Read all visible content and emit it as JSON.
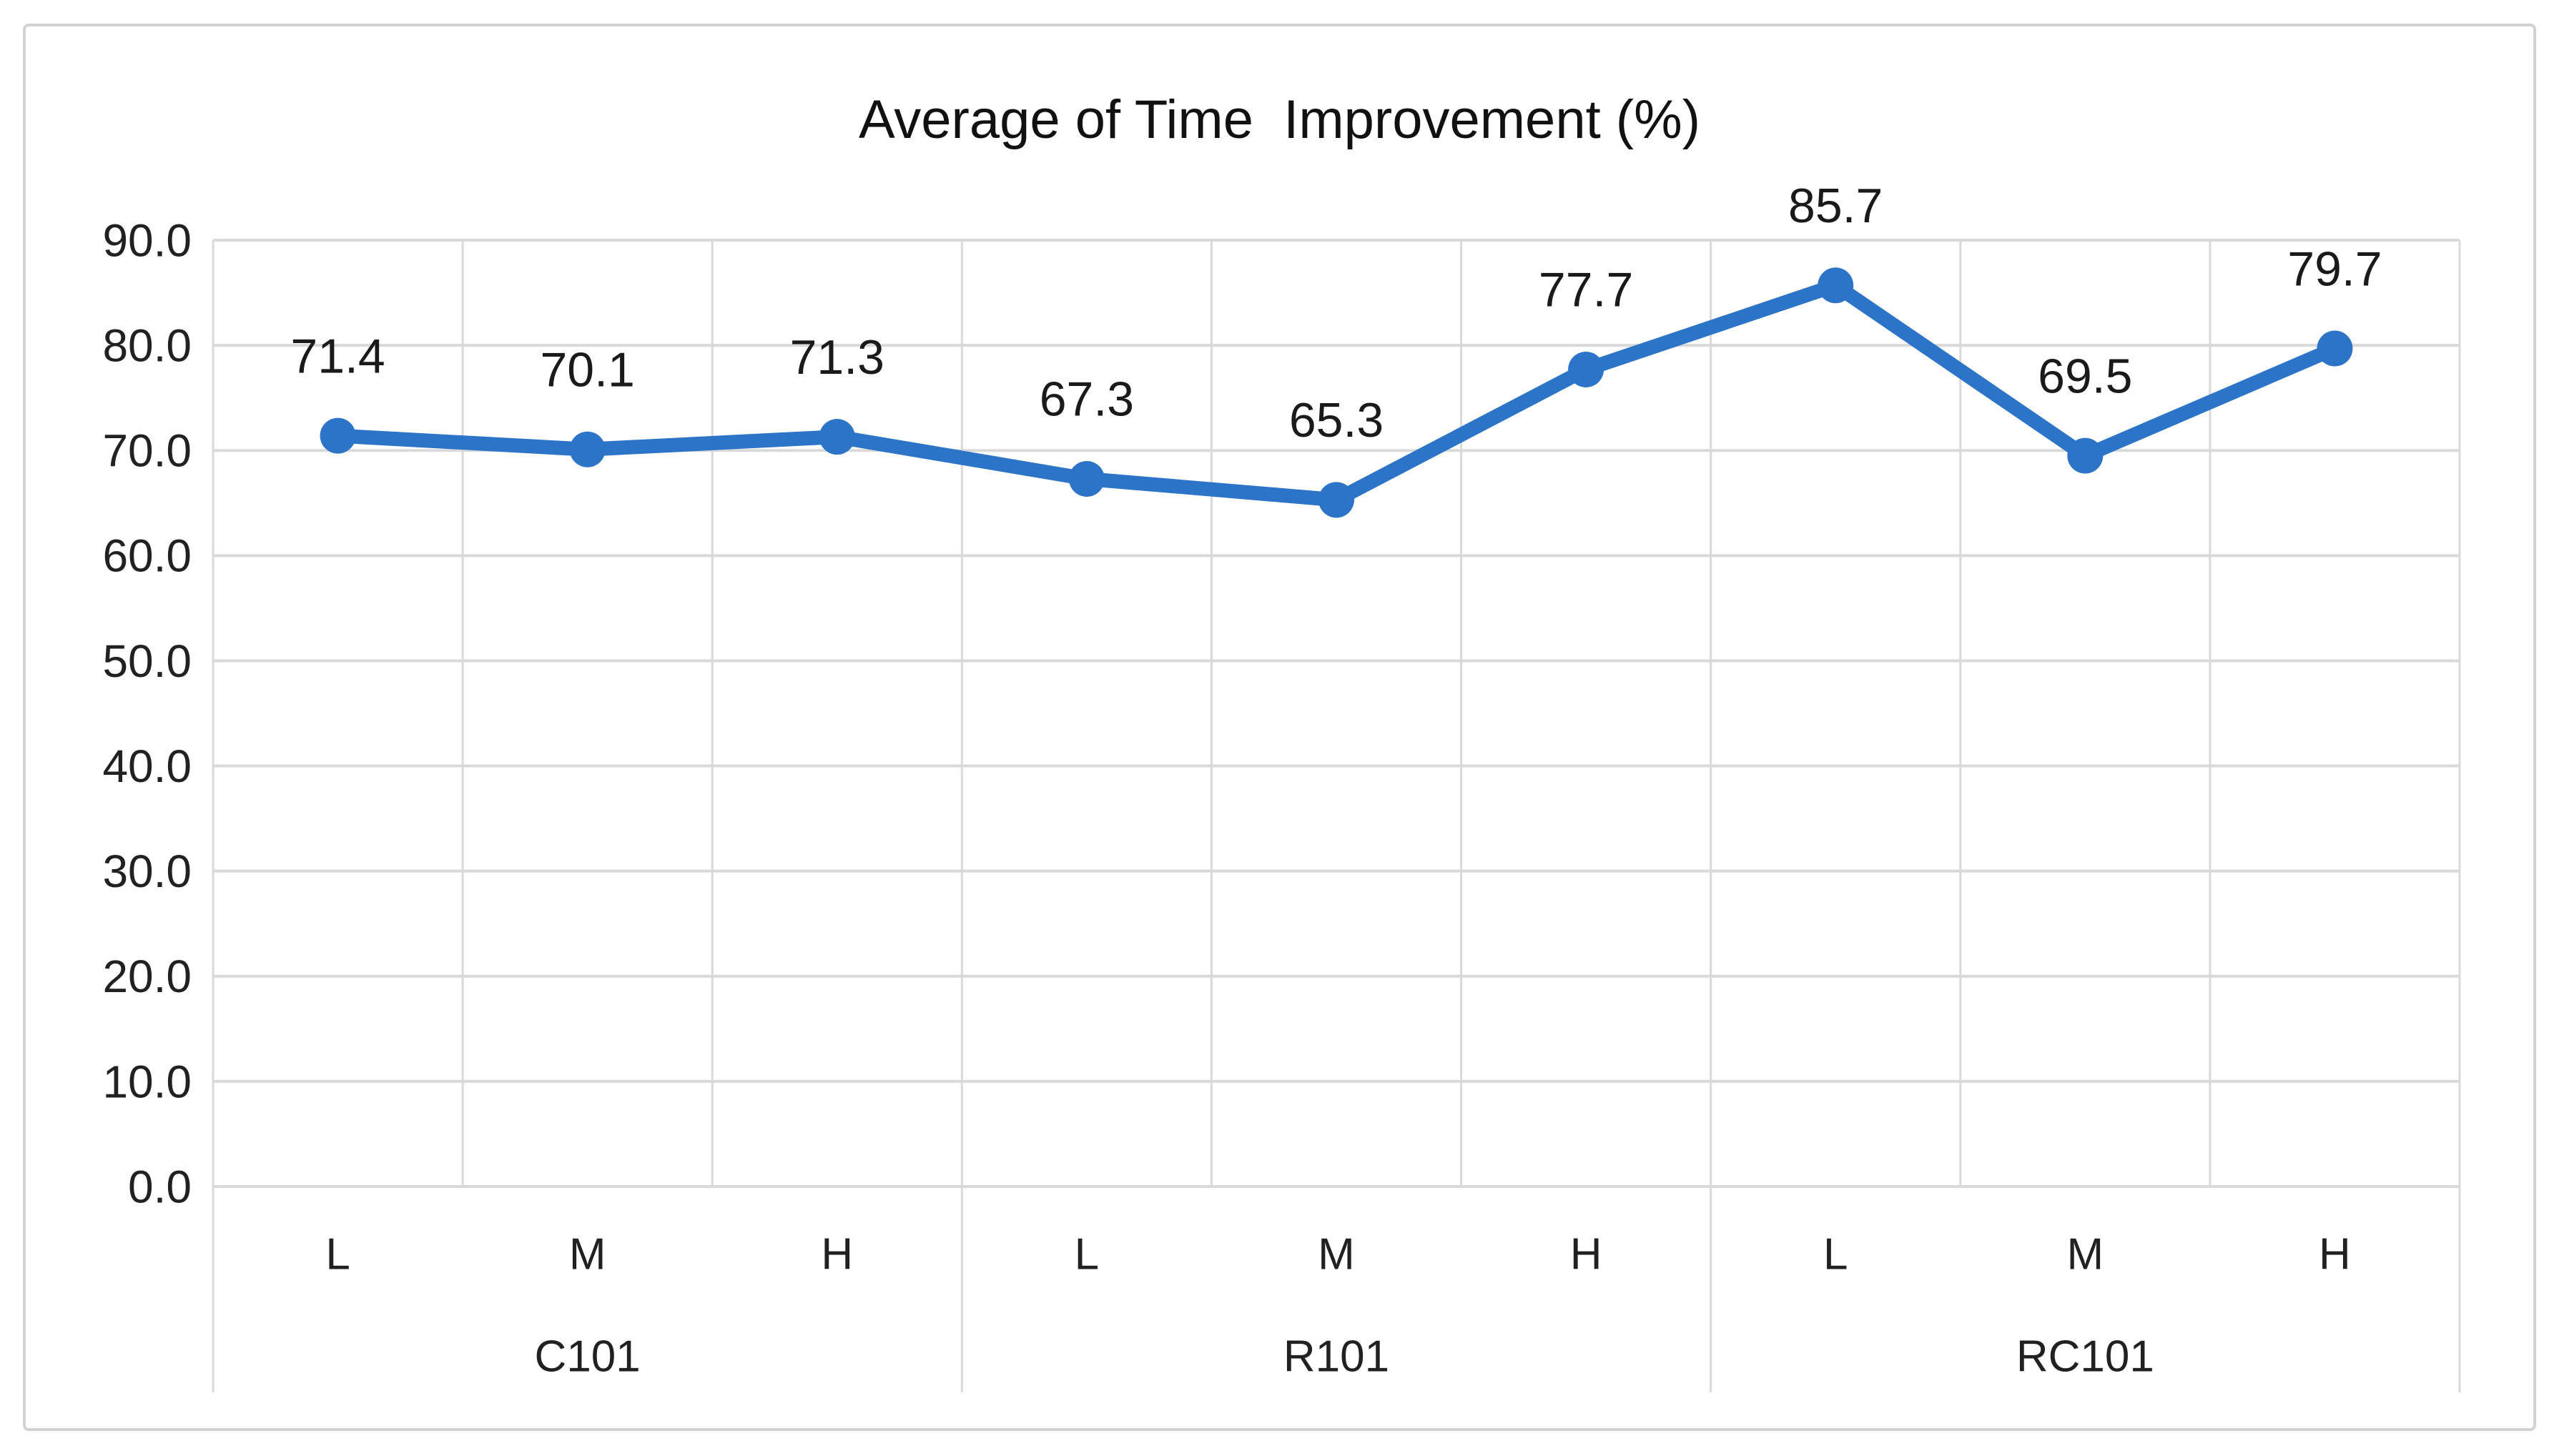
{
  "chart_data": {
    "type": "line",
    "title": "Average of Time  Improvement (%)",
    "categories": [
      "L",
      "M",
      "H",
      "L",
      "M",
      "H",
      "L",
      "M",
      "H"
    ],
    "groups": [
      {
        "label": "C101",
        "span": 3
      },
      {
        "label": "R101",
        "span": 3
      },
      {
        "label": "RC101",
        "span": 3
      }
    ],
    "series": [
      {
        "name": "Average of Time Improvement (%)",
        "values": [
          71.4,
          70.1,
          71.3,
          67.3,
          65.3,
          77.7,
          85.7,
          69.5,
          79.7
        ],
        "data_labels": [
          "71.4",
          "70.1",
          "71.3",
          "67.3",
          "65.3",
          "77.7",
          "85.7",
          "69.5",
          "79.7"
        ]
      }
    ],
    "ylim": [
      0,
      90
    ],
    "ytick_values": [
      0,
      10,
      20,
      30,
      40,
      50,
      60,
      70,
      80,
      90
    ],
    "ytick_labels": [
      "0.0",
      "10.0",
      "20.0",
      "30.0",
      "40.0",
      "50.0",
      "60.0",
      "70.0",
      "80.0",
      "90.0"
    ],
    "xlabel": "",
    "ylabel": "",
    "grid": true,
    "legend": false,
    "colors": {
      "line": "#2C74C8",
      "marker": "#2C74C8",
      "gridline": "#D9D9D9",
      "axis_text": "#212121",
      "data_label_text": "#1A1A1A",
      "title_text": "#111111",
      "figure_border": "#D2D2D2",
      "background": "#FFFFFF"
    }
  }
}
